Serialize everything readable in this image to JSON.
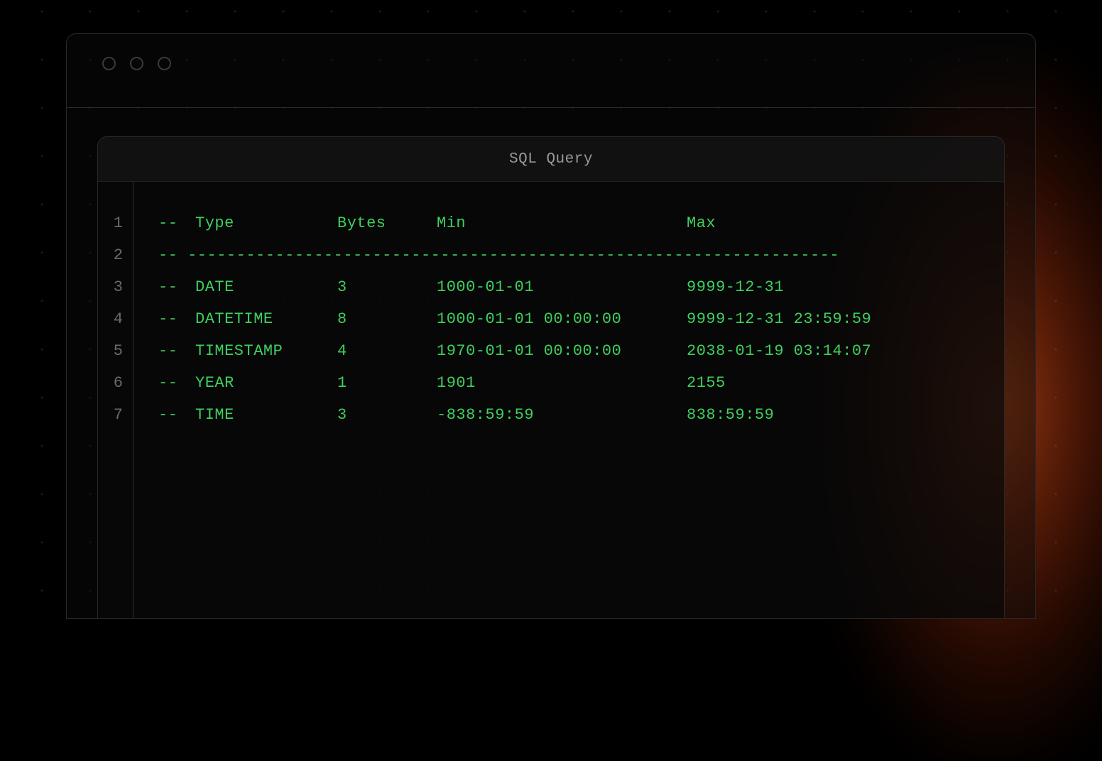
{
  "colors": {
    "background": "#000000",
    "panel_border": "#2a2a2a",
    "panel_bg": "rgba(8, 8, 8, 0.7)",
    "header_bg": "rgba(26, 26, 26, 0.55)",
    "text_muted": "#9a9a9a",
    "text_gutter": "#6a6a6a",
    "code_green": "#3ecf5e",
    "glow_orange": "#ff5a1e"
  },
  "panel": {
    "title": "SQL Query"
  },
  "code": {
    "line_numbers": [
      "1",
      "2",
      "3",
      "4",
      "5",
      "6",
      "7"
    ],
    "comment_prefix": "--",
    "header": {
      "type": "Type",
      "bytes": "Bytes",
      "min": "Min",
      "max": "Max"
    },
    "separator": "-- -------------------------------------------------------------------",
    "rows": [
      {
        "type": "DATE",
        "bytes": "3",
        "min": "1000-01-01",
        "max": "9999-12-31"
      },
      {
        "type": "DATETIME",
        "bytes": "8",
        "min": "1000-01-01 00:00:00",
        "max": "9999-12-31 23:59:59"
      },
      {
        "type": "TIMESTAMP",
        "bytes": "4",
        "min": "1970-01-01 00:00:00",
        "max": "2038-01-19 03:14:07"
      },
      {
        "type": "YEAR",
        "bytes": "1",
        "min": "1901",
        "max": "2155"
      },
      {
        "type": "TIME",
        "bytes": "3",
        "min": "-838:59:59",
        "max": "838:59:59"
      }
    ]
  }
}
